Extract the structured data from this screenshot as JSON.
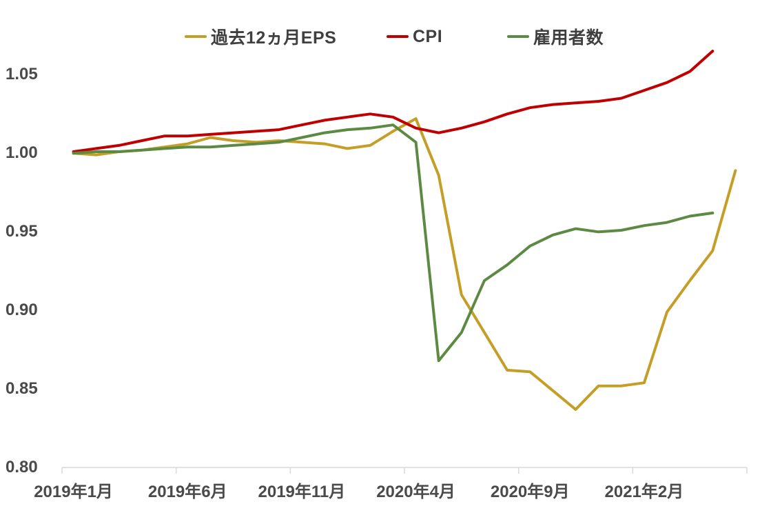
{
  "page": {
    "background_color": "#FFFFFF",
    "text_color": "#3F3F3F",
    "axis_line_color": "#D9D9D9",
    "title": ""
  },
  "chart_data": {
    "type": "line",
    "title": "",
    "xlabel": "",
    "ylabel": "",
    "legend_position": "top",
    "grid": false,
    "x_axis": {
      "n_points": 30,
      "tick_labels": [
        "2019年1月",
        "2019年6月",
        "2019年11月",
        "2020年4月",
        "2020年9月",
        "2021年2月"
      ],
      "tick_label_indices": [
        0,
        5,
        10,
        15,
        20,
        25
      ],
      "boundary_ticks": 7
    },
    "y_axis": {
      "tick_labels": [
        "1.05",
        "1.00",
        "0.95",
        "0.90",
        "0.85",
        "0.80"
      ],
      "min": 0.8,
      "max": 1.05,
      "step": 0.05
    },
    "series": [
      {
        "name": "過去12ヵ月EPS",
        "color": "#C59E27",
        "values": [
          0.999,
          0.998,
          1.0,
          1.001,
          1.003,
          1.005,
          1.009,
          1.007,
          1.006,
          1.007,
          1.006,
          1.005,
          1.002,
          1.004,
          1.013,
          1.021,
          0.985,
          0.909,
          0.885,
          0.861,
          0.86,
          0.848,
          0.836,
          0.851,
          0.851,
          0.853,
          0.898,
          0.918,
          0.937,
          0.988
        ]
      },
      {
        "name": "CPI",
        "color": "#C00000",
        "values": [
          1.0,
          1.002,
          1.004,
          1.007,
          1.01,
          1.01,
          1.011,
          1.012,
          1.013,
          1.014,
          1.017,
          1.02,
          1.022,
          1.024,
          1.022,
          1.015,
          1.012,
          1.015,
          1.019,
          1.024,
          1.028,
          1.03,
          1.031,
          1.032,
          1.034,
          1.039,
          1.044,
          1.051,
          1.064
        ]
      },
      {
        "name": "雇用者数",
        "color": "#5C8A43",
        "values": [
          0.999,
          1.0,
          1.0,
          1.001,
          1.002,
          1.003,
          1.003,
          1.004,
          1.005,
          1.006,
          1.009,
          1.012,
          1.014,
          1.015,
          1.017,
          1.006,
          0.867,
          0.885,
          0.918,
          0.928,
          0.94,
          0.947,
          0.951,
          0.949,
          0.95,
          0.953,
          0.955,
          0.959,
          0.961
        ]
      }
    ]
  }
}
